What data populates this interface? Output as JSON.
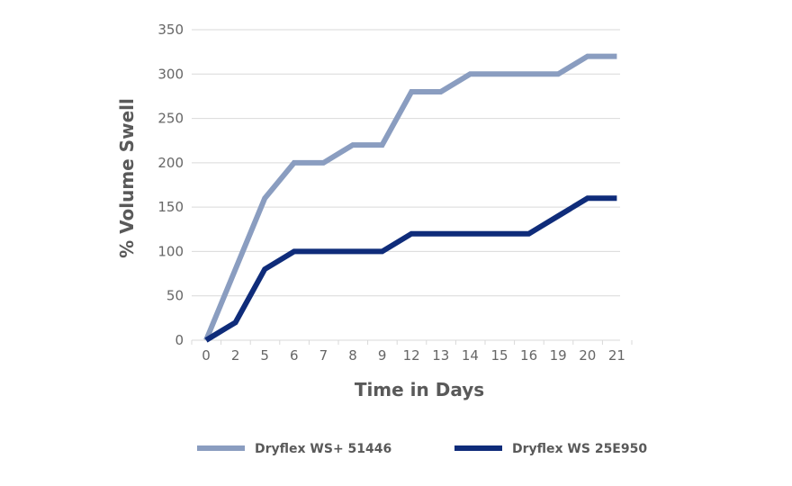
{
  "chart_data": {
    "type": "line",
    "title": "",
    "xlabel": "Time in Days",
    "ylabel": "% Volume Swell",
    "categories": [
      "0",
      "2",
      "5",
      "6",
      "7",
      "8",
      "9",
      "12",
      "13",
      "14",
      "15",
      "16",
      "19",
      "20",
      "21"
    ],
    "ylim": [
      0,
      350
    ],
    "yticks": [
      0,
      50,
      100,
      150,
      200,
      250,
      300,
      350
    ],
    "grid": true,
    "legend_position": "bottom",
    "series": [
      {
        "name": "Dryflex WS+ 51446",
        "color": "#8a9dc0",
        "values": [
          0,
          80,
          160,
          200,
          200,
          220,
          220,
          280,
          280,
          300,
          300,
          300,
          300,
          320,
          320
        ]
      },
      {
        "name": "Dryflex WS 25E950",
        "color": "#0f2c7a",
        "values": [
          0,
          20,
          80,
          100,
          100,
          100,
          100,
          120,
          120,
          120,
          120,
          120,
          140,
          160,
          160
        ]
      }
    ]
  }
}
